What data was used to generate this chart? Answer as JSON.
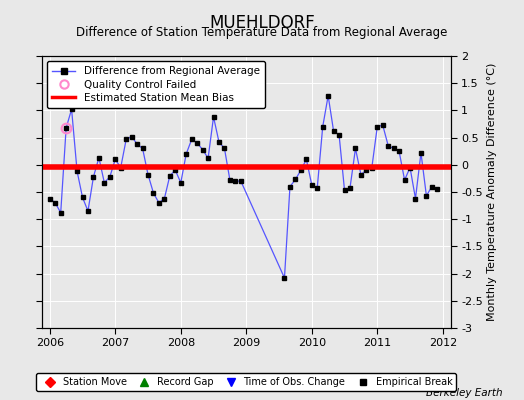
{
  "title": "MUEHLDORF",
  "subtitle": "Difference of Station Temperature Data from Regional Average",
  "ylabel": "Monthly Temperature Anomaly Difference (°C)",
  "xlim": [
    2005.88,
    2012.12
  ],
  "ylim": [
    -3,
    2
  ],
  "yticks": [
    -3,
    -2.5,
    -2,
    -1.5,
    -1,
    -0.5,
    0,
    0.5,
    1,
    1.5,
    2
  ],
  "xticks": [
    2006,
    2007,
    2008,
    2009,
    2010,
    2011,
    2012
  ],
  "bias_value": -0.04,
  "background_color": "#e8e8e8",
  "plot_bg_color": "#e8e8e8",
  "line_color": "#5555ff",
  "bias_color": "#ff0000",
  "marker_color": "#000000",
  "qc_fail_x": 2006.25,
  "qc_fail_y": 0.68,
  "data_x": [
    2006.0,
    2006.083,
    2006.167,
    2006.25,
    2006.333,
    2006.417,
    2006.5,
    2006.583,
    2006.667,
    2006.75,
    2006.833,
    2006.917,
    2007.0,
    2007.083,
    2007.167,
    2007.25,
    2007.333,
    2007.417,
    2007.5,
    2007.583,
    2007.667,
    2007.75,
    2007.833,
    2007.917,
    2008.0,
    2008.083,
    2008.167,
    2008.25,
    2008.333,
    2008.417,
    2008.5,
    2008.583,
    2008.667,
    2008.75,
    2008.833,
    2008.917,
    2009.583,
    2009.667,
    2009.75,
    2009.833,
    2009.917,
    2010.0,
    2010.083,
    2010.167,
    2010.25,
    2010.333,
    2010.417,
    2010.5,
    2010.583,
    2010.667,
    2010.75,
    2010.833,
    2010.917,
    2011.0,
    2011.083,
    2011.167,
    2011.25,
    2011.333,
    2011.417,
    2011.5,
    2011.583,
    2011.667,
    2011.75,
    2011.833,
    2011.917
  ],
  "data_y": [
    -0.62,
    -0.7,
    -0.88,
    0.68,
    1.02,
    -0.12,
    -0.6,
    -0.85,
    -0.22,
    0.13,
    -0.33,
    -0.22,
    0.1,
    -0.05,
    0.47,
    0.52,
    0.38,
    0.3,
    -0.18,
    -0.52,
    -0.7,
    -0.62,
    -0.2,
    -0.1,
    -0.33,
    0.2,
    0.47,
    0.4,
    0.28,
    0.12,
    0.88,
    0.42,
    0.3,
    -0.28,
    -0.3,
    -0.3,
    -2.08,
    -0.4,
    -0.27,
    -0.1,
    0.1,
    -0.37,
    -0.43,
    0.7,
    1.27,
    0.62,
    0.55,
    -0.47,
    -0.43,
    0.3,
    -0.18,
    -0.1,
    -0.05,
    0.7,
    0.73,
    0.35,
    0.3,
    0.25,
    -0.28,
    -0.05,
    -0.62,
    0.22,
    -0.57,
    -0.4,
    -0.45
  ],
  "footer_text": "Berkeley Earth",
  "title_fontsize": 12,
  "subtitle_fontsize": 8.5,
  "tick_fontsize": 8,
  "ylabel_fontsize": 8
}
